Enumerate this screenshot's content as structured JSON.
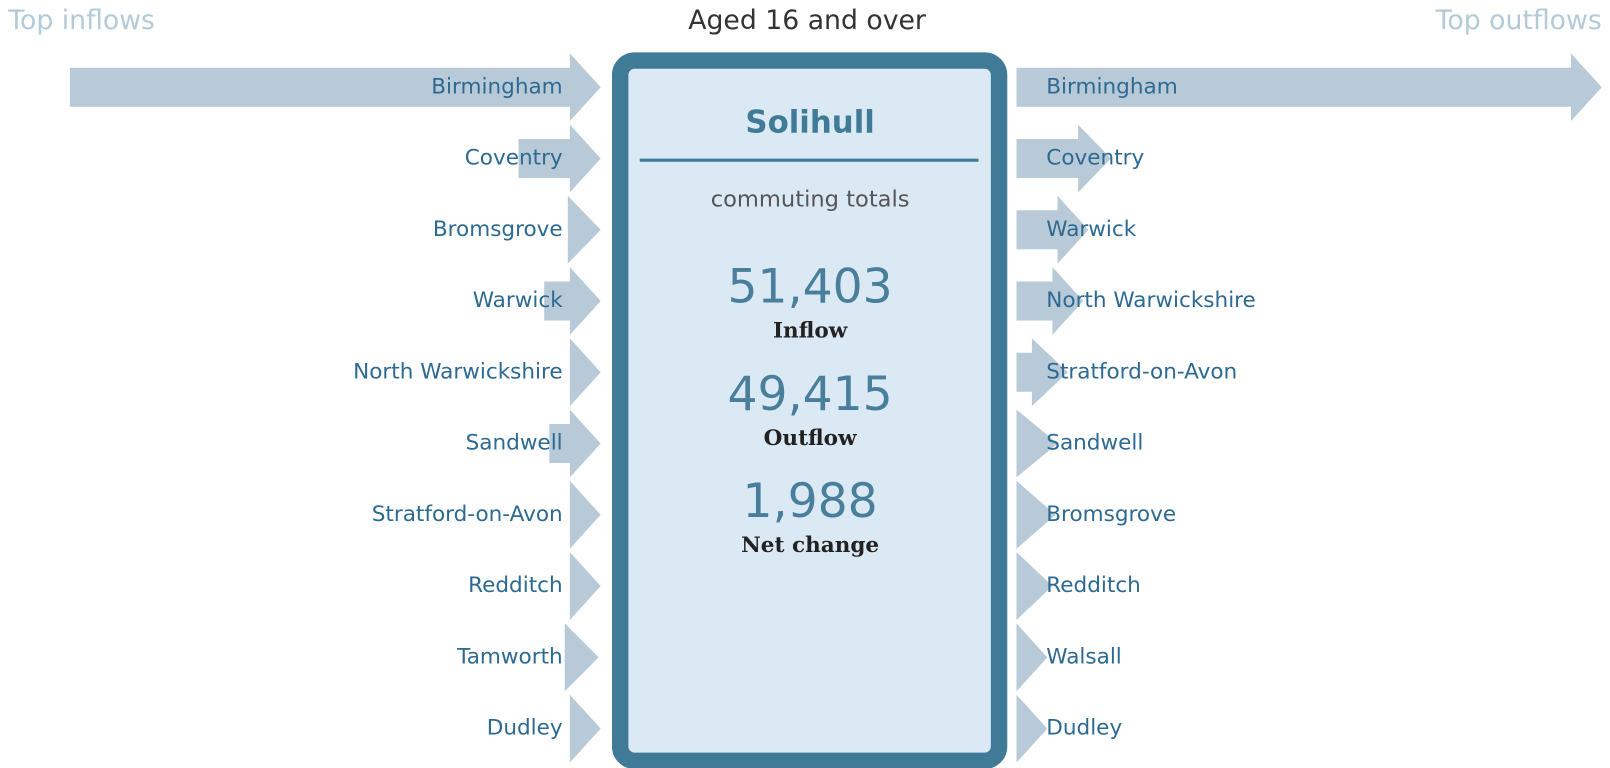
{
  "header": {
    "left_title": "Top inflows",
    "center_title": "Aged 16 and over",
    "right_title": "Top outflows"
  },
  "inflows": [
    "Birmingham",
    "Coventry",
    "Bromsgrove",
    "Warwick",
    "North Warwickshire",
    "Sandwell",
    "Stratford-on-Avon",
    "Redditch",
    "Tamworth",
    "Dudley"
  ],
  "outflows": [
    "Birmingham",
    "Coventry",
    "Warwick",
    "North Warwickshire",
    "Stratford-on-Avon",
    "Sandwell",
    "Bromsgrove",
    "Redditch",
    "Walsall",
    "Dudley"
  ],
  "panel": {
    "area": "Solihull",
    "subtitle": "commuting totals",
    "stats": [
      {
        "value": "51,403",
        "label": "Inflow"
      },
      {
        "value": "49,415",
        "label": "Outflow"
      },
      {
        "value": "1,988",
        "label": "Net change"
      }
    ]
  }
}
